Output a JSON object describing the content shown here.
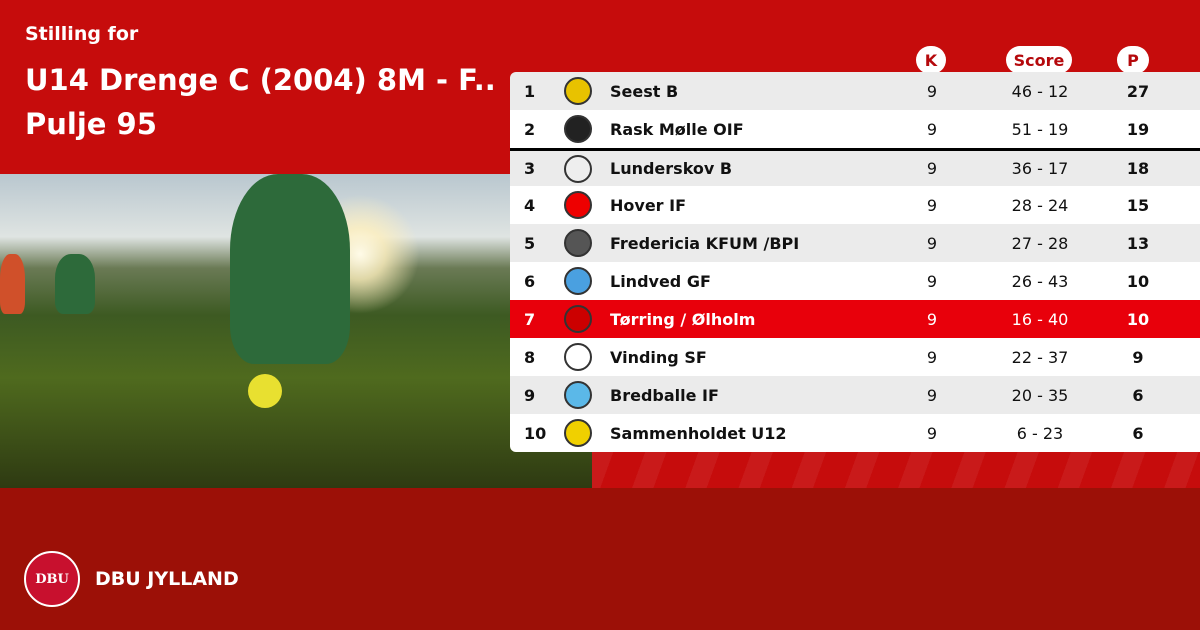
{
  "header": {
    "subtitle": "Stilling for",
    "title": "U14 Drenge C (2004) 8M - F.. Pulje 95"
  },
  "columns": {
    "k": "K",
    "score": "Score",
    "p": "P"
  },
  "colors": {
    "primary": "#c60c0c",
    "highlight": "#e8000b",
    "footer": "#9c1007"
  },
  "rows": [
    {
      "pos": "1",
      "team": "Seest B",
      "k": "9",
      "score": "46 - 12",
      "p": "27",
      "logo": "#e8c200"
    },
    {
      "pos": "2",
      "team": "Rask Mølle OIF",
      "k": "9",
      "score": "51 - 19",
      "p": "19",
      "logo": "#222"
    },
    {
      "pos": "3",
      "team": "Lunderskov B",
      "k": "9",
      "score": "36 - 17",
      "p": "18",
      "logo": "#eee"
    },
    {
      "pos": "4",
      "team": "Hover IF",
      "k": "9",
      "score": "28 - 24",
      "p": "15",
      "logo": "#e00"
    },
    {
      "pos": "5",
      "team": "Fredericia KFUM /BPI",
      "k": "9",
      "score": "27 - 28",
      "p": "13",
      "logo": "#555"
    },
    {
      "pos": "6",
      "team": "Lindved GF",
      "k": "9",
      "score": "26 - 43",
      "p": "10",
      "logo": "#4aa0e0"
    },
    {
      "pos": "7",
      "team": "Tørring / Ølholm",
      "k": "9",
      "score": "16 - 40",
      "p": "10",
      "logo": "#c00",
      "highlight": true
    },
    {
      "pos": "8",
      "team": "Vinding SF",
      "k": "9",
      "score": "22 - 37",
      "p": "9",
      "logo": "#fff"
    },
    {
      "pos": "9",
      "team": "Bredballe IF",
      "k": "9",
      "score": "20 - 35",
      "p": "6",
      "logo": "#5bb8e8"
    },
    {
      "pos": "10",
      "team": "Sammenholdet U12",
      "k": "9",
      "score": "6 - 23",
      "p": "6",
      "logo": "#f0d000"
    }
  ],
  "footer": {
    "logo_text": "DBU",
    "brand": "DBU JYLLAND"
  }
}
